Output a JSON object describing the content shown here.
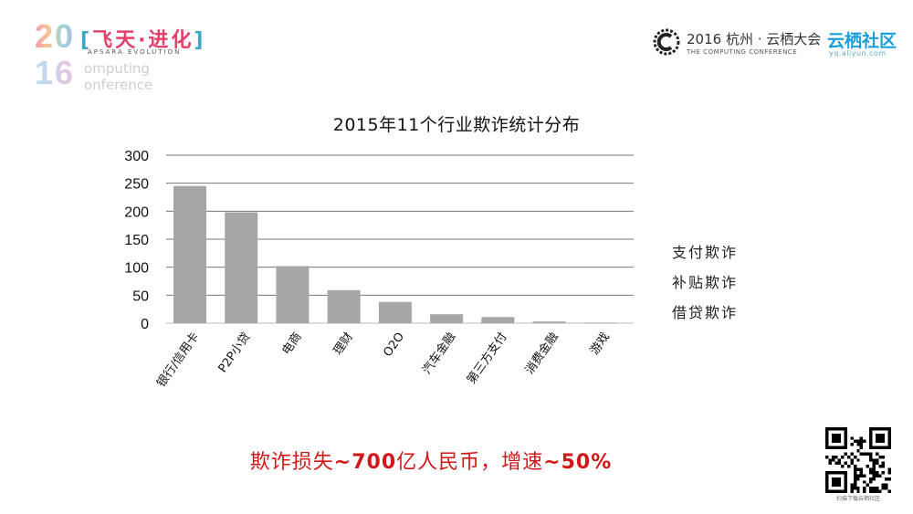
{
  "header": {
    "event_logo": {
      "year_top": "20",
      "year_bottom": "16",
      "slogan": "飞天·进化",
      "slogan_sub": "APSARA EVOLUTION",
      "computing": "omputing",
      "conference": "onference"
    },
    "conference_logo": {
      "title": "2016 杭州 · 云栖大会",
      "subtitle": "THE COMPUTING CONFERENCE"
    },
    "community_logo": {
      "title": "云栖社区",
      "url": "yq.aliyun.com"
    }
  },
  "chart_data": {
    "type": "bar",
    "title": "2015年11个行业欺诈统计分布",
    "categories": [
      "银行/信用卡",
      "P2P小贷",
      "电商",
      "理财",
      "O2O",
      "汽车金融",
      "第三方支付",
      "消费金融",
      "游戏"
    ],
    "values": [
      245,
      198,
      102,
      59,
      38,
      16,
      11,
      3,
      1
    ],
    "ylim": [
      0,
      300
    ],
    "yticks": [
      0,
      50,
      100,
      150,
      200,
      250,
      300
    ],
    "grid": true,
    "bar_color": "#a6a6a6",
    "grid_color": "#777777"
  },
  "side_notes": [
    "支付欺诈",
    "补贴欺诈",
    "借贷欺诈"
  ],
  "caption": {
    "prefix": "欺诈损失",
    "loss": "~700",
    "middle": "亿人民币，增速",
    "growth": "~50%",
    "color": "#d01818"
  },
  "qr": {
    "caption": "扫描下载云栖社区"
  }
}
